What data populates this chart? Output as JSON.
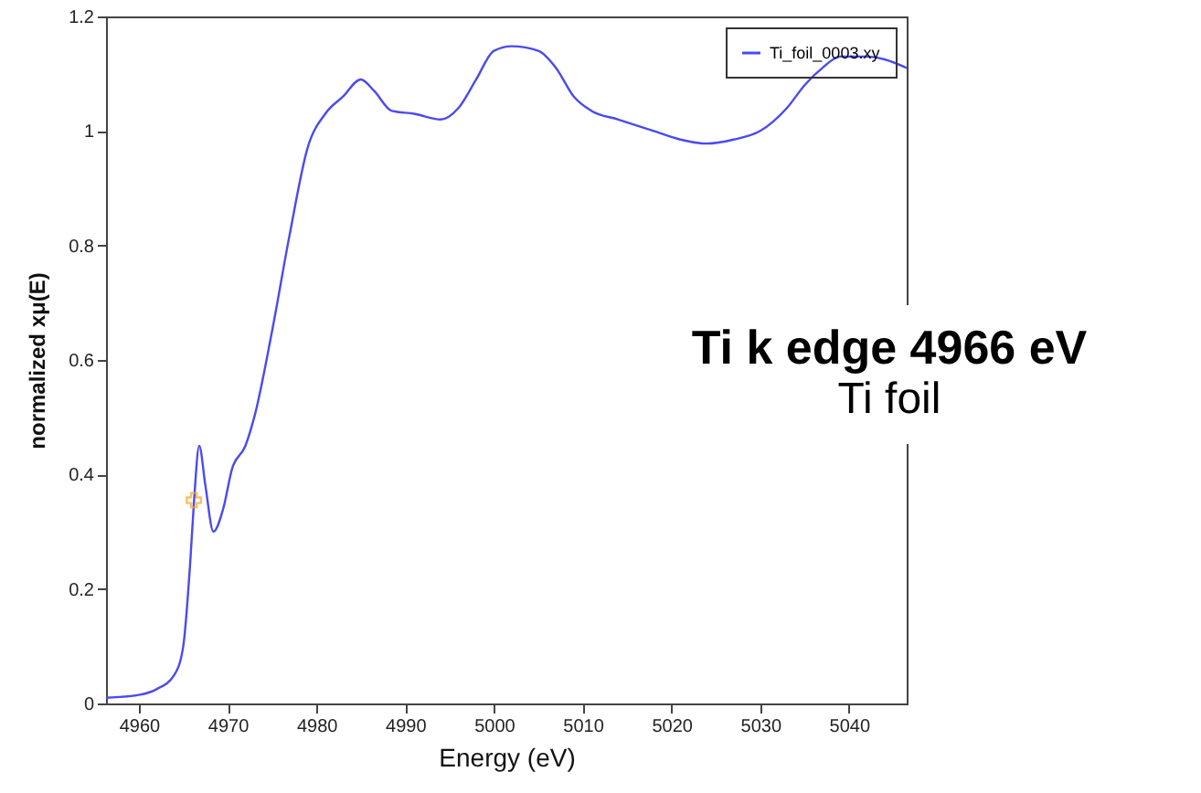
{
  "chart_data": {
    "type": "line",
    "xlabel": "Energy   (eV)",
    "ylabel": "normalized xμ(E)",
    "xlim": [
      4956.3,
      5046.5
    ],
    "xticks": [
      4960,
      4970,
      4980,
      4990,
      5000,
      5010,
      5020,
      5030,
      5040
    ],
    "ylim": [
      0,
      1.2
    ],
    "yticks": [
      0,
      0.2,
      0.4,
      0.6,
      0.8,
      1,
      1.2
    ],
    "grid": false,
    "legend": "top right",
    "annotations": [
      "Ti k edge 4966 eV",
      "Ti foil"
    ],
    "series": [
      {
        "name": "Ti_foil_0003.xy",
        "color": "#4a4af0",
        "line_style": "solid",
        "x": [
          4956.3,
          4960,
          4962,
          4964,
          4965,
          4965.8,
          4966.2,
          4966.8,
          4967.5,
          4968.4,
          4969.5,
          4970.5,
          4972,
          4973,
          4975,
          4977,
          4979,
          4981,
          4983,
          4985,
          4986.5,
          4988.5,
          4991,
          4994,
          4996,
          4998,
          5000,
          5002,
          5005,
          5007,
          5009,
          5011,
          5014,
          5018,
          5021,
          5024,
          5027,
          5030,
          5033,
          5035,
          5037,
          5039,
          5042,
          5044,
          5046.5
        ],
        "values": [
          0.01,
          0.015,
          0.025,
          0.05,
          0.1,
          0.25,
          0.35,
          0.45,
          0.38,
          0.3,
          0.34,
          0.41,
          0.45,
          0.5,
          0.65,
          0.82,
          0.97,
          1.03,
          1.06,
          1.09,
          1.07,
          1.035,
          1.03,
          1.02,
          1.04,
          1.09,
          1.14,
          1.148,
          1.14,
          1.11,
          1.06,
          1.035,
          1.02,
          1.0,
          0.985,
          0.978,
          0.985,
          1.0,
          1.04,
          1.08,
          1.11,
          1.13,
          1.13,
          1.125,
          1.11
        ]
      },
      {
        "type": "scatter",
        "marker": "cross",
        "color": "#f5a623",
        "x": [
          4966.2
        ],
        "values": [
          0.355
        ]
      }
    ]
  }
}
